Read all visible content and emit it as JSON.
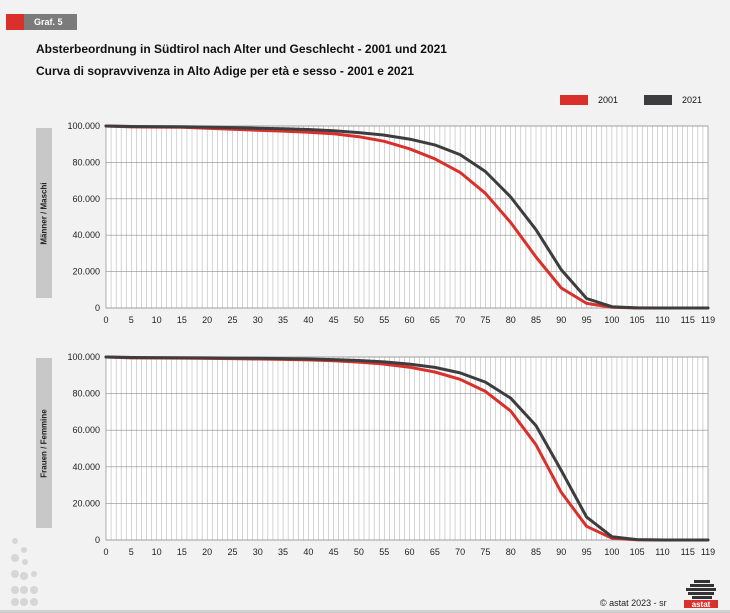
{
  "header": {
    "badge_label": "Graf. 5",
    "title_de": "Absterbeordnung in Südtirol nach Alter und Geschlecht - 2001 und 2021",
    "title_it": "Curva di sopravvivenza in Alto Adige per età e sesso - 2001 e 2021"
  },
  "legend": [
    {
      "label": "2001",
      "color": "#d9302c"
    },
    {
      "label": "2021",
      "color": "#3d3d3f"
    }
  ],
  "footer": {
    "copyright": "© astat 2023 - sr",
    "logo_text": "astat"
  },
  "chart_data": [
    {
      "type": "line",
      "side_label": "Männer / Maschi",
      "xlabel": "",
      "ylabel": "",
      "xlim": [
        0,
        119
      ],
      "ylim": [
        0,
        100000
      ],
      "x_ticks": [
        "0",
        "5",
        "10",
        "15",
        "20",
        "25",
        "30",
        "35",
        "40",
        "45",
        "50",
        "55",
        "60",
        "65",
        "70",
        "75",
        "80",
        "85",
        "90",
        "95",
        "100",
        "105",
        "110",
        "115",
        "119"
      ],
      "y_ticks": [
        "0",
        "20.000",
        "40.000",
        "60.000",
        "80.000",
        "100.000"
      ],
      "grid": true,
      "x": [
        0,
        5,
        10,
        15,
        20,
        25,
        30,
        35,
        40,
        45,
        50,
        55,
        60,
        65,
        70,
        75,
        80,
        85,
        90,
        95,
        100,
        105,
        110,
        115,
        119
      ],
      "series": [
        {
          "name": "2001",
          "color": "#d9302c",
          "values": [
            100000,
            99500,
            99400,
            99300,
            98800,
            98200,
            97700,
            97200,
            96600,
            95700,
            94100,
            91600,
            87500,
            82000,
            74500,
            63000,
            47000,
            28000,
            11000,
            2500,
            400,
            50,
            5,
            0,
            0
          ]
        },
        {
          "name": "2021",
          "color": "#3d3d3f",
          "values": [
            100000,
            99700,
            99650,
            99600,
            99400,
            99100,
            98800,
            98500,
            98100,
            97400,
            96400,
            95000,
            92800,
            89600,
            84300,
            75000,
            61000,
            43000,
            21000,
            5200,
            700,
            80,
            10,
            0,
            0
          ]
        }
      ]
    },
    {
      "type": "line",
      "side_label": "Frauen / Femmine",
      "xlabel": "",
      "ylabel": "",
      "xlim": [
        0,
        119
      ],
      "ylim": [
        0,
        100000
      ],
      "x_ticks": [
        "0",
        "5",
        "10",
        "15",
        "20",
        "25",
        "30",
        "35",
        "40",
        "45",
        "50",
        "55",
        "60",
        "65",
        "70",
        "75",
        "80",
        "85",
        "90",
        "95",
        "100",
        "105",
        "110",
        "115",
        "119"
      ],
      "y_ticks": [
        "0",
        "20.000",
        "40.000",
        "60.000",
        "80.000",
        "100.000"
      ],
      "grid": true,
      "x": [
        0,
        5,
        10,
        15,
        20,
        25,
        30,
        35,
        40,
        45,
        50,
        55,
        60,
        65,
        70,
        75,
        80,
        85,
        90,
        95,
        100,
        105,
        110,
        115,
        119
      ],
      "series": [
        {
          "name": "2001",
          "color": "#d9302c",
          "values": [
            100000,
            99500,
            99450,
            99400,
            99250,
            99100,
            98900,
            98700,
            98400,
            97900,
            97200,
            96100,
            94400,
            91800,
            87800,
            81200,
            70500,
            52000,
            26000,
            7500,
            1000,
            100,
            10,
            0,
            0
          ]
        },
        {
          "name": "2021",
          "color": "#3d3d3f",
          "values": [
            100000,
            99700,
            99650,
            99600,
            99500,
            99400,
            99300,
            99100,
            98900,
            98600,
            98100,
            97300,
            96100,
            94300,
            91300,
            86300,
            77500,
            62500,
            38000,
            12500,
            1800,
            200,
            20,
            0,
            0
          ]
        }
      ]
    }
  ]
}
